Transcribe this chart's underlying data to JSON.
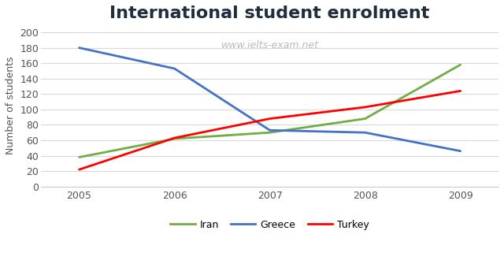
{
  "title": "International student enrolment",
  "watermark": "www.ielts-exam.net",
  "ylabel": "Number of students",
  "years": [
    2005,
    2006,
    2007,
    2008,
    2009
  ],
  "series": {
    "Iran": {
      "values": [
        38,
        62,
        70,
        88,
        158
      ],
      "color": "#70AD47"
    },
    "Greece": {
      "values": [
        180,
        153,
        73,
        70,
        46
      ],
      "color": "#4472C4"
    },
    "Turkey": {
      "values": [
        22,
        63,
        88,
        103,
        124
      ],
      "color": "#FF0000"
    }
  },
  "ylim": [
    0,
    210
  ],
  "yticks": [
    0,
    20,
    40,
    60,
    80,
    100,
    120,
    140,
    160,
    180,
    200
  ],
  "title_fontsize": 16,
  "title_color": "#1F2D3D",
  "axis_label_fontsize": 9,
  "tick_fontsize": 9,
  "legend_fontsize": 9,
  "watermark_color": "#BBBBBB",
  "watermark_fontsize": 9,
  "background_color": "#FFFFFF",
  "grid_color": "#D9D9D9",
  "line_width": 2.0
}
